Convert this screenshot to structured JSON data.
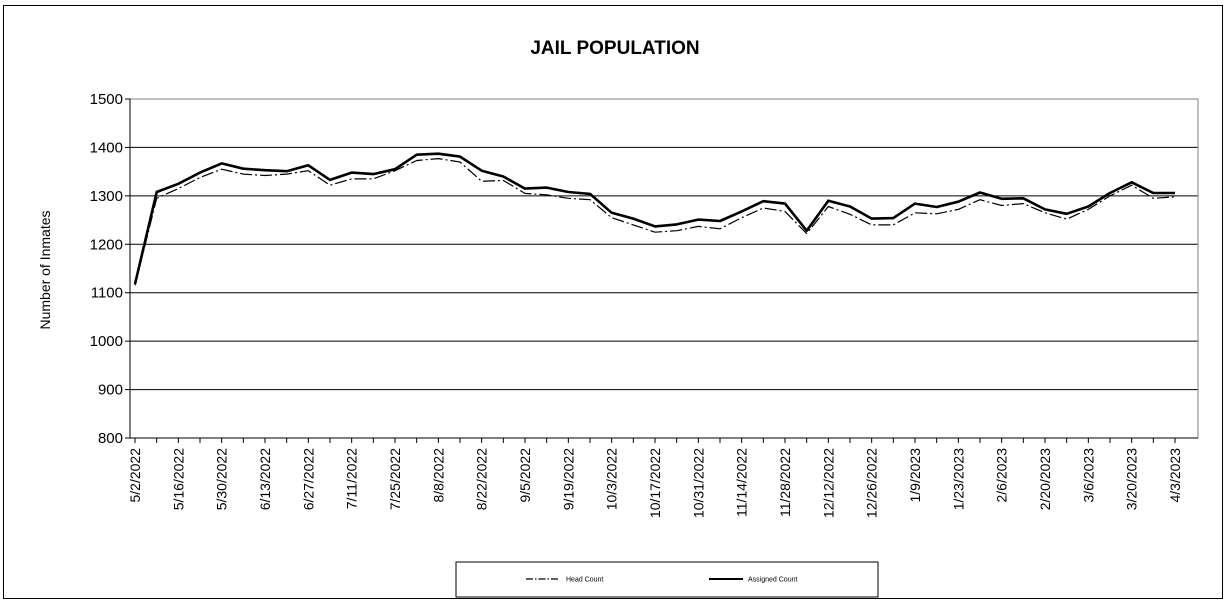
{
  "chart_data": {
    "type": "line",
    "title": "JAIL POPULATION",
    "xlabel": "",
    "ylabel": "Number of Inmates",
    "ylim": [
      800,
      1500
    ],
    "yticks": [
      800,
      900,
      1000,
      1100,
      1200,
      1300,
      1400,
      1500
    ],
    "grid": "horizontal",
    "legend_position": "bottom",
    "x_tick_labels": [
      "5/2/2022",
      "5/16/2022",
      "5/30/2022",
      "6/13/2022",
      "6/27/2022",
      "7/11/2022",
      "7/25/2022",
      "8/8/2022",
      "8/22/2022",
      "9/5/2022",
      "9/19/2022",
      "10/3/2022",
      "10/17/2022",
      "10/31/2022",
      "11/14/2022",
      "11/28/2022",
      "12/12/2022",
      "12/26/2022",
      "1/9/2023",
      "1/23/2023",
      "2/6/2023",
      "2/20/2023",
      "3/6/2023",
      "3/20/2023",
      "4/3/2023"
    ],
    "x_dates": [
      "5/2/2022",
      "5/9/2022",
      "5/16/2022",
      "5/23/2022",
      "5/30/2022",
      "6/6/2022",
      "6/13/2022",
      "6/20/2022",
      "6/27/2022",
      "7/4/2022",
      "7/11/2022",
      "7/18/2022",
      "7/25/2022",
      "8/1/2022",
      "8/8/2022",
      "8/15/2022",
      "8/22/2022",
      "8/29/2022",
      "9/5/2022",
      "9/12/2022",
      "9/19/2022",
      "9/26/2022",
      "10/3/2022",
      "10/10/2022",
      "10/17/2022",
      "10/24/2022",
      "10/31/2022",
      "11/7/2022",
      "11/14/2022",
      "11/21/2022",
      "11/28/2022",
      "12/5/2022",
      "12/12/2022",
      "12/19/2022",
      "12/26/2022",
      "1/2/2023",
      "1/9/2023",
      "1/16/2023",
      "1/23/2023",
      "1/30/2023",
      "2/6/2023",
      "2/13/2023",
      "2/20/2023",
      "2/27/2023",
      "3/6/2023",
      "3/13/2023",
      "3/20/2023",
      "3/27/2023",
      "4/3/2023"
    ],
    "series": [
      {
        "name": "Head Count",
        "style": "dash-dot",
        "color": "#000000",
        "values": [
          1115,
          1295,
          1315,
          1338,
          1355,
          1345,
          1342,
          1345,
          1352,
          1322,
          1335,
          1335,
          1352,
          1373,
          1377,
          1370,
          1330,
          1332,
          1305,
          1302,
          1295,
          1292,
          1255,
          1240,
          1225,
          1228,
          1237,
          1232,
          1255,
          1275,
          1268,
          1222,
          1278,
          1262,
          1240,
          1240,
          1265,
          1263,
          1272,
          1292,
          1280,
          1284,
          1265,
          1252,
          1272,
          1300,
          1322,
          1295,
          1298
        ]
      },
      {
        "name": "Assigned Count",
        "style": "solid",
        "color": "#000000",
        "values": [
          1118,
          1308,
          1325,
          1348,
          1367,
          1356,
          1353,
          1351,
          1363,
          1333,
          1348,
          1345,
          1355,
          1385,
          1387,
          1381,
          1352,
          1340,
          1315,
          1317,
          1308,
          1304,
          1265,
          1253,
          1237,
          1241,
          1251,
          1248,
          1268,
          1289,
          1284,
          1228,
          1290,
          1278,
          1253,
          1254,
          1284,
          1277,
          1288,
          1307,
          1294,
          1295,
          1272,
          1263,
          1278,
          1306,
          1328,
          1306,
          1306
        ]
      }
    ]
  }
}
